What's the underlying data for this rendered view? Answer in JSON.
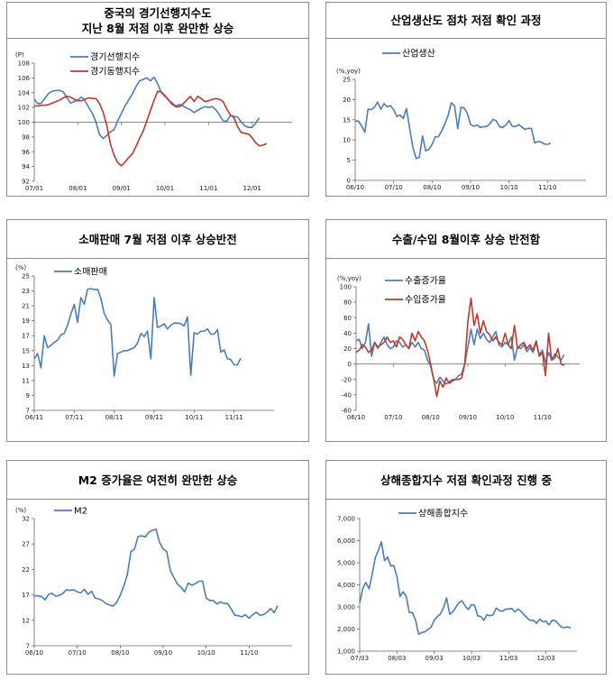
{
  "panels": [
    {
      "title_lines": [
        "중국의 경기선행지수도",
        "지난 8월 저점 이후 완만한 상승"
      ],
      "chart_data": {
        "type": "line",
        "unit": "(P)",
        "ylim": [
          92,
          108
        ],
        "yticks": [
          92,
          94,
          96,
          98,
          100,
          102,
          104,
          106,
          108
        ],
        "xlim": [
          0,
          71
        ],
        "xticks": [
          {
            "label": "07/01",
            "x": 0
          },
          {
            "label": "08/01",
            "x": 12
          },
          {
            "label": "09/01",
            "x": 24
          },
          {
            "label": "10/01",
            "x": 36
          },
          {
            "label": "11/01",
            "x": 48
          },
          {
            "label": "12/01",
            "x": 60
          }
        ],
        "baseline": 100,
        "series": [
          {
            "name": "경기선행지수",
            "color": "#4a7ebb",
            "values": [
              103.1,
              102.5,
              102.6,
              103.3,
              103.9,
              104.2,
              104.3,
              104.3,
              104.1,
              103.3,
              102.6,
              102.8,
              103.0,
              103.4,
              102.9,
              102.0,
              101.2,
              100.0,
              98.3,
              97.8,
              98.2,
              98.7,
              99.0,
              100.2,
              101.2,
              102.2,
              103.0,
              103.8,
              104.8,
              105.6,
              105.8,
              106.0,
              105.6,
              106.1,
              105.2,
              104.0,
              103.5,
              103.0,
              102.6,
              102.2,
              102.4,
              102.2,
              101.9,
              101.7,
              101.3,
              101.6,
              101.9,
              102.1,
              102.0,
              102.1,
              101.7,
              101.0,
              100.2,
              100.1,
              100.9,
              100.8,
              100.7,
              100.0,
              99.5,
              99.3,
              99.3,
              99.9,
              100.6
            ]
          },
          {
            "name": "경기동행지수",
            "color": "#c0392b",
            "values": [
              102.2,
              102.2,
              102.3,
              102.3,
              102.4,
              102.6,
              102.8,
              103.0,
              103.3,
              103.5,
              103.4,
              103.1,
              102.9,
              102.9,
              103.1,
              103.3,
              103.2,
              103.2,
              102.5,
              101.3,
              99.5,
              97.0,
              95.5,
              94.5,
              94.1,
              94.6,
              95.2,
              95.7,
              96.7,
              97.8,
              98.8,
              100.2,
              101.6,
              103.0,
              104.2,
              104.1,
              103.6,
              103.0,
              102.4,
              102.1,
              102.1,
              102.5,
              103.0,
              103.5,
              102.8,
              103.5,
              103.2,
              102.8,
              102.9,
              103.1,
              103.2,
              103.1,
              102.8,
              101.8,
              101.0,
              100.6,
              99.4,
              98.6,
              98.5,
              98.4,
              97.9,
              97.2,
              96.8,
              96.9,
              97.1
            ]
          }
        ]
      }
    },
    {
      "title_lines": [
        "산업생산도 점차 저점 확인 과정"
      ],
      "chart_data": {
        "type": "line",
        "unit": "(%,yoy)",
        "ylim": [
          0,
          25
        ],
        "yticks": [
          0,
          5,
          10,
          15,
          20,
          25
        ],
        "xlim": [
          0,
          72
        ],
        "xticks": [
          {
            "label": "06/10",
            "x": 0
          },
          {
            "label": "07/10",
            "x": 12
          },
          {
            "label": "08/10",
            "x": 24
          },
          {
            "label": "09/10",
            "x": 36
          },
          {
            "label": "10/10",
            "x": 48
          },
          {
            "label": "11/10",
            "x": 60
          }
        ],
        "series": [
          {
            "name": "산업생산",
            "color": "#4a7ebb",
            "values": [
              14.7,
              14.7,
              13.5,
              11.9,
              17.6,
              17.5,
              18.1,
              19.4,
              17.6,
              19.0,
              18.2,
              18.5,
              17.5,
              15.8,
              16.2,
              15.3,
              17.8,
              12.8,
              8.2,
              5.4,
              5.7,
              11.0,
              7.3,
              7.7,
              8.9,
              10.8,
              10.8,
              12.3,
              13.9,
              16.1,
              19.2,
              18.5,
              12.8,
              18.1,
              17.9,
              16.6,
              13.8,
              13.4,
              13.7,
              13.1,
              13.3,
              13.3,
              14.0,
              15.1,
              14.8,
              13.3,
              13.1,
              13.7,
              14.8,
              13.4,
              13.3,
              13.8,
              13.2,
              12.6,
              12.9,
              12.8,
              9.3,
              9.6,
              9.5,
              9.0,
              8.9,
              9.2
            ]
          }
        ]
      }
    },
    {
      "title_lines": [
        "소매판매 7월 저점 이후 상승반전"
      ],
      "chart_data": {
        "type": "line",
        "unit": "(%)",
        "ylim": [
          7,
          25
        ],
        "yticks": [
          7,
          9,
          11,
          13,
          15,
          17,
          19,
          21,
          23,
          25
        ],
        "xlim": [
          0,
          72
        ],
        "xticks": [
          {
            "label": "06/11",
            "x": 0
          },
          {
            "label": "07/11",
            "x": 12
          },
          {
            "label": "08/11",
            "x": 24
          },
          {
            "label": "09/11",
            "x": 36
          },
          {
            "label": "10/11",
            "x": 48
          },
          {
            "label": "11/11",
            "x": 60
          }
        ],
        "series": [
          {
            "name": "소매판매",
            "color": "#4a7ebb",
            "values": [
              13.9,
              14.6,
              12.7,
              17.0,
              15.4,
              15.7,
              16.1,
              16.4,
              17.1,
              17.3,
              18.4,
              19.9,
              21.2,
              18.8,
              22.1,
              21.2,
              23.2,
              23.3,
              23.2,
              23.2,
              22.0,
              20.0,
              19.1,
              18.5,
              11.6,
              14.6,
              14.8,
              15.0,
              15.0,
              15.2,
              15.4,
              16.0,
              17.3,
              16.9,
              17.6,
              13.9,
              22.1,
              18.1,
              18.3,
              18.6,
              17.9,
              18.4,
              18.7,
              18.7,
              18.6,
              18.3,
              19.5,
              11.7,
              17.4,
              17.2,
              17.6,
              17.6,
              17.9,
              17.2,
              17.2,
              17.8,
              14.8,
              15.1,
              13.9,
              13.8,
              13.1,
              13.1,
              14.0
            ]
          }
        ]
      }
    },
    {
      "title_lines": [
        "수출/수입 8월이후 상승 반전함"
      ],
      "chart_data": {
        "type": "line",
        "unit": "(%,yoy)",
        "ylim": [
          -60,
          100
        ],
        "yticks": [
          -60,
          -40,
          -20,
          0,
          20,
          40,
          60,
          80,
          100
        ],
        "xlim": [
          0,
          72
        ],
        "xticks": [
          {
            "label": "06/10",
            "x": 0
          },
          {
            "label": "07/10",
            "x": 12
          },
          {
            "label": "08/10",
            "x": 24
          },
          {
            "label": "09/10",
            "x": 36
          },
          {
            "label": "10/10",
            "x": 48
          },
          {
            "label": "11/10",
            "x": 60
          }
        ],
        "series": [
          {
            "name": "수출증가율",
            "color": "#4a7ebb",
            "values": [
              30,
              32,
              20,
              28,
              52,
              10,
              28,
              20,
              28,
              35,
              25,
              20,
              22,
              30,
              28,
              22,
              25,
              20,
              28,
              22,
              28,
              20,
              18,
              5,
              -2,
              -20,
              -25,
              -17,
              -22,
              -26,
              -23,
              -20,
              -20,
              -15,
              -13,
              0,
              22,
              45,
              25,
              45,
              33,
              40,
              32,
              28,
              35,
              42,
              25,
              22,
              28,
              25,
              35,
              5,
              22,
              20,
              25,
              16,
              21,
              15,
              28,
              12,
              18,
              2,
              15,
              5,
              13,
              9,
              5,
              12
            ]
          },
          {
            "name": "수입증가율",
            "color": "#c0392b",
            "values": [
              15,
              18,
              25,
              22,
              15,
              18,
              28,
              22,
              25,
              28,
              35,
              28,
              30,
              22,
              35,
              32,
              25,
              20,
              40,
              30,
              42,
              35,
              30,
              18,
              0,
              -20,
              -42,
              -22,
              -30,
              -18,
              -25,
              -22,
              -20,
              -20,
              -18,
              0,
              55,
              85,
              50,
              65,
              40,
              56,
              42,
              38,
              30,
              35,
              28,
              25,
              40,
              25,
              20,
              50,
              20,
              25,
              28,
              20,
              25,
              18,
              30,
              10,
              15,
              -15,
              40,
              5,
              8,
              20,
              0,
              -2
            ]
          }
        ]
      }
    },
    {
      "title_lines": [
        "M2 증가율은 여전히 완만한 상승"
      ],
      "chart_data": {
        "type": "line",
        "unit": "(%)",
        "ylim": [
          7,
          32
        ],
        "yticks": [
          7,
          12,
          17,
          22,
          27,
          32
        ],
        "xlim": [
          0,
          72
        ],
        "xticks": [
          {
            "label": "06/10",
            "x": 0
          },
          {
            "label": "07/10",
            "x": 12
          },
          {
            "label": "08/10",
            "x": 24
          },
          {
            "label": "09/10",
            "x": 36
          },
          {
            "label": "10/10",
            "x": 48
          },
          {
            "label": "11/10",
            "x": 60
          }
        ],
        "series": [
          {
            "name": "M2",
            "color": "#4a7ebb",
            "values": [
              16.8,
              16.8,
              16.7,
              16.0,
              17.1,
              17.3,
              16.7,
              16.9,
              17.3,
              18.0,
              17.9,
              18.0,
              17.6,
              17.4,
              18.1,
              17.1,
              17.7,
              16.4,
              16.2,
              15.9,
              15.3,
              15.0,
              14.8,
              15.5,
              16.9,
              18.7,
              21.0,
              25.5,
              26.0,
              28.5,
              28.6,
              28.4,
              29.3,
              29.7,
              29.9,
              27.3,
              26.0,
              25.5,
              21.8,
              20.4,
              19.1,
              18.5,
              17.6,
              19.3,
              18.9,
              19.2,
              19.7,
              19.7,
              16.4,
              15.9,
              15.9,
              15.2,
              15.6,
              15.3,
              15.3,
              14.2,
              13.0,
              12.9,
              12.7,
              13.1,
              12.4,
              13.1,
              13.6,
              13.0,
              13.1,
              13.6,
              14.3,
              13.5,
              14.9
            ]
          }
        ]
      }
    },
    {
      "title_lines": [
        "상해종합지수 저점 확인과정 진행 중"
      ],
      "chart_data": {
        "type": "line",
        "unit": "",
        "ylim": [
          1000,
          7000
        ],
        "yticks": [
          1000,
          2000,
          3000,
          4000,
          5000,
          6000,
          7000
        ],
        "yticklabels": [
          "1,000",
          "2,000",
          "3,000",
          "4,000",
          "5,000",
          "6,000",
          "7,000"
        ],
        "xlim": [
          0,
          70
        ],
        "xticks": [
          {
            "label": "07/03",
            "x": 0
          },
          {
            "label": "08/03",
            "x": 12
          },
          {
            "label": "09/03",
            "x": 24
          },
          {
            "label": "10/03",
            "x": 36
          },
          {
            "label": "11/03",
            "x": 48
          },
          {
            "label": "12/03",
            "x": 60
          }
        ],
        "series": [
          {
            "name": "상해종합지수",
            "color": "#4a7ebb",
            "values": [
              3180,
              3840,
              4110,
              3820,
              4470,
              5220,
              5550,
              5950,
              5100,
              5260,
              4850,
              4870,
              4380,
              3470,
              3690,
              3480,
              2740,
              2750,
              2400,
              1760,
              1850,
              1870,
              1990,
              2080,
              2400,
              2560,
              2680,
              2960,
              3410,
              2670,
              2780,
              2990,
              3200,
              3280,
              3040,
              2880,
              3100,
              3080,
              2600,
              2570,
              2400,
              2650,
              2600,
              2650,
              2950,
              2840,
              2800,
              2900,
              2910,
              2930,
              2770,
              2910,
              2800,
              2640,
              2500,
              2390,
              2400,
              2260,
              2450,
              2330,
              2360,
              2190,
              2400,
              2380,
              2240,
              2090,
              2060,
              2100,
              2050
            ]
          }
        ]
      }
    }
  ]
}
